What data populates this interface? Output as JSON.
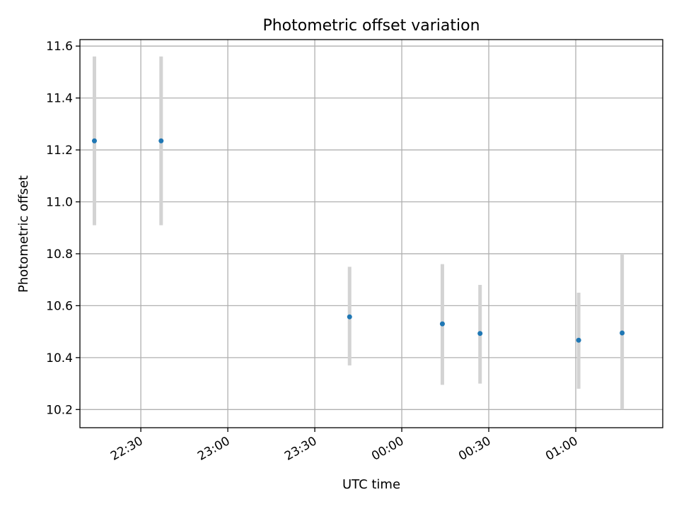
{
  "chart_data": {
    "type": "scatter",
    "title": "Photometric offset variation",
    "xlabel": "UTC time",
    "ylabel": "Photometric offset",
    "x_axis_type": "time",
    "x_tick_labels": [
      "22:30",
      "23:00",
      "23:30",
      "00:00",
      "00:30",
      "01:00"
    ],
    "y_ticks": [
      10.2,
      10.4,
      10.6,
      10.8,
      11.0,
      11.2,
      11.4,
      11.6
    ],
    "y_tick_labels": [
      "10.2",
      "10.4",
      "10.6",
      "10.8",
      "11.0",
      "11.2",
      "11.4",
      "11.6"
    ],
    "xlim": [
      "22:09",
      "01:30"
    ],
    "ylim": [
      10.13,
      11.625
    ],
    "grid": true,
    "point_color": "#1f77b4",
    "errorbar_color": "#d3d3d3",
    "points": [
      {
        "x": "22:14",
        "y": 11.235,
        "y_low": 10.91,
        "y_high": 11.56
      },
      {
        "x": "22:37",
        "y": 11.235,
        "y_low": 10.91,
        "y_high": 11.56
      },
      {
        "x": "23:42",
        "y": 10.557,
        "y_low": 10.37,
        "y_high": 10.75
      },
      {
        "x": "00:14",
        "y": 10.53,
        "y_low": 10.295,
        "y_high": 10.76
      },
      {
        "x": "00:27",
        "y": 10.493,
        "y_low": 10.3,
        "y_high": 10.68
      },
      {
        "x": "01:01",
        "y": 10.467,
        "y_low": 10.28,
        "y_high": 10.65
      },
      {
        "x": "01:16",
        "y": 10.495,
        "y_low": 10.2,
        "y_high": 10.8
      }
    ]
  }
}
